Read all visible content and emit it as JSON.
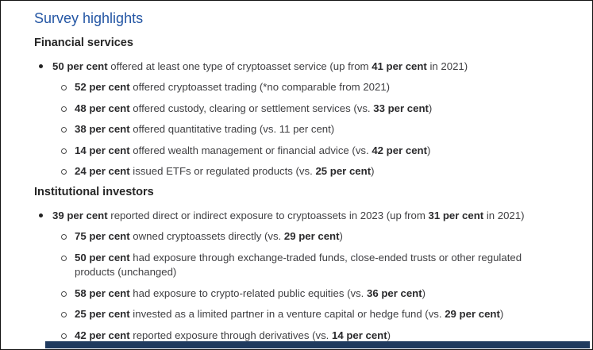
{
  "colors": {
    "title_blue": "#2456a4",
    "body_text": "#3f3f42",
    "footer_bar": "#1f3a5e"
  },
  "page": {
    "title": "Survey highlights",
    "sections": [
      {
        "heading": "Financial services",
        "items": [
          {
            "level": 1,
            "parts": [
              {
                "text": "50 per cent",
                "bold": true
              },
              {
                "text": " offered at least one type of cryptoasset service (up from ",
                "bold": false
              },
              {
                "text": "41 per cent",
                "bold": true
              },
              {
                "text": " in 2021)",
                "bold": false
              }
            ]
          },
          {
            "level": 2,
            "parts": [
              {
                "text": "52 per cent",
                "bold": true
              },
              {
                "text": " offered cryptoasset trading (*no comparable from 2021)",
                "bold": false
              }
            ]
          },
          {
            "level": 2,
            "parts": [
              {
                "text": "48 per cent",
                "bold": true
              },
              {
                "text": " offered custody, clearing or settlement services (vs. ",
                "bold": false
              },
              {
                "text": "33 per cent",
                "bold": true
              },
              {
                "text": ")",
                "bold": false
              }
            ]
          },
          {
            "level": 2,
            "parts": [
              {
                "text": "38 per cent",
                "bold": true
              },
              {
                "text": " offered quantitative trading (vs. 11 per cent)",
                "bold": false
              }
            ]
          },
          {
            "level": 2,
            "parts": [
              {
                "text": "14 per cent",
                "bold": true
              },
              {
                "text": " offered wealth management or financial advice (vs. ",
                "bold": false
              },
              {
                "text": "42 per cent",
                "bold": true
              },
              {
                "text": ")",
                "bold": false
              }
            ]
          },
          {
            "level": 2,
            "parts": [
              {
                "text": "24 per cent",
                "bold": true
              },
              {
                "text": " issued ETFs or regulated products (vs. ",
                "bold": false
              },
              {
                "text": "25 per cent",
                "bold": true
              },
              {
                "text": ")",
                "bold": false
              }
            ]
          }
        ]
      },
      {
        "heading": "Institutional investors",
        "items": [
          {
            "level": 1,
            "parts": [
              {
                "text": "39 per cent",
                "bold": true
              },
              {
                "text": " reported direct or indirect exposure to cryptoassets in 2023 (up from ",
                "bold": false
              },
              {
                "text": "31 per cent",
                "bold": true
              },
              {
                "text": " in 2021)",
                "bold": false
              }
            ]
          },
          {
            "level": 2,
            "parts": [
              {
                "text": "75 per cent",
                "bold": true
              },
              {
                "text": " owned cryptoassets directly (vs. ",
                "bold": false
              },
              {
                "text": "29 per cent",
                "bold": true
              },
              {
                "text": ")",
                "bold": false
              }
            ]
          },
          {
            "level": 2,
            "parts": [
              {
                "text": "50 per cent",
                "bold": true
              },
              {
                "text": " had exposure through exchange-traded funds, close-ended trusts or other regulated products (unchanged)",
                "bold": false
              }
            ]
          },
          {
            "level": 2,
            "parts": [
              {
                "text": "58 per cent",
                "bold": true
              },
              {
                "text": " had exposure to crypto-related public equities (vs. ",
                "bold": false
              },
              {
                "text": "36 per cent",
                "bold": true
              },
              {
                "text": ")",
                "bold": false
              }
            ]
          },
          {
            "level": 2,
            "parts": [
              {
                "text": "25 per cent",
                "bold": true
              },
              {
                "text": " invested as a limited partner in a venture capital or hedge fund (vs. ",
                "bold": false
              },
              {
                "text": "29 per cent",
                "bold": true
              },
              {
                "text": ")",
                "bold": false
              }
            ]
          },
          {
            "level": 2,
            "parts": [
              {
                "text": "42 per cent",
                "bold": true
              },
              {
                "text": " reported exposure through derivatives (vs. ",
                "bold": false
              },
              {
                "text": "14 per cent",
                "bold": true
              },
              {
                "text": ")",
                "bold": false
              }
            ]
          }
        ]
      }
    ]
  }
}
